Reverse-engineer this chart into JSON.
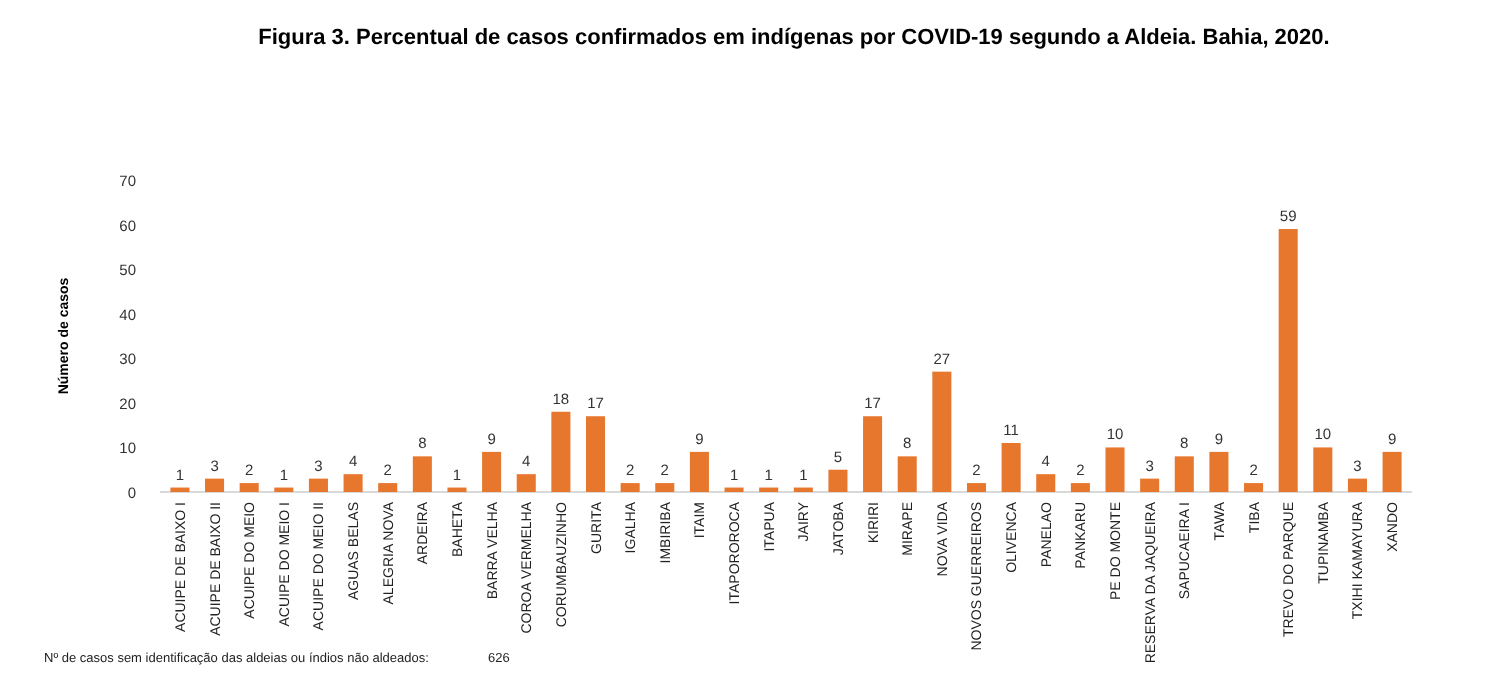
{
  "chart_data": {
    "type": "bar",
    "title": "Figura 3. Percentual de casos confirmados em indígenas por COVID-19 segundo a Aldeia. Bahia, 2020.",
    "ylabel": "Número de casos",
    "categories": [
      "ACUIPE DE BAIXO I",
      "ACUIPE DE BAIXO II",
      "ACUIPE DO MEIO",
      "ACUIPE DO MEIO I",
      "ACUIPE DO MEIO II",
      "AGUAS BELAS",
      "ALEGRIA NOVA",
      "ARDEIRA",
      "BAHETA",
      "BARRA VELHA",
      "COROA VERMELHA",
      "CORUMBAUZINHO",
      "GURITA",
      "IGALHA",
      "IMBIRIBA",
      "ITAIM",
      "ITAPOROROCA",
      "ITAPUA",
      "JAIRY",
      "JATOBA",
      "KIRIRI",
      "MIRAPE",
      "NOVA VIDA",
      "NOVOS GUERREIROS",
      "OLIVENCA",
      "PANELAO",
      "PANKARU",
      "PE DO MONTE",
      "RESERVA DA JAQUEIRA",
      "SAPUCAEIRA I",
      "TAWA",
      "TIBA",
      "TREVO DO PARQUE",
      "TUPINAMBA",
      "TXIHI KAMAYURA",
      "XANDO"
    ],
    "values": [
      1,
      3,
      2,
      1,
      3,
      4,
      2,
      8,
      1,
      9,
      4,
      18,
      17,
      2,
      2,
      9,
      1,
      1,
      1,
      5,
      17,
      8,
      27,
      2,
      11,
      4,
      2,
      10,
      3,
      8,
      9,
      2,
      59,
      10,
      3,
      9
    ],
    "color": "#e8772e",
    "ylim": [
      0,
      70
    ],
    "yticks": [
      0,
      10,
      20,
      30,
      40,
      50,
      60,
      70
    ],
    "grid": false,
    "data_labels": true,
    "annotations": [
      "Nº de casos sem identificação das aldeias ou índios não aldeados:",
      "626"
    ]
  }
}
